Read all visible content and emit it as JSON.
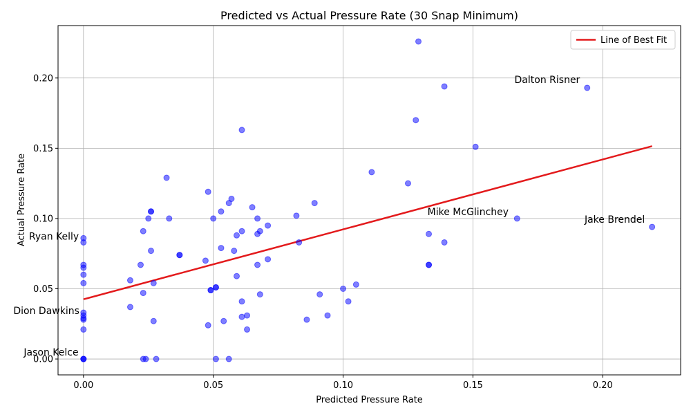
{
  "chart_data": {
    "type": "scatter",
    "title": "Predicted vs Actual Pressure Rate (30 Snap Minimum)",
    "xlabel": "Predicted Pressure Rate",
    "ylabel": "Actual Pressure Rate",
    "xlim": [
      -0.0098,
      0.23
    ],
    "ylim": [
      -0.0113,
      0.2373
    ],
    "xticks": [
      0.0,
      0.05,
      0.1,
      0.15,
      0.2
    ],
    "xtick_labels": [
      "0.00",
      "0.05",
      "0.10",
      "0.15",
      "0.20"
    ],
    "yticks": [
      0.0,
      0.05,
      0.1,
      0.15,
      0.2
    ],
    "ytick_labels": [
      "0.00",
      "0.05",
      "0.10",
      "0.15",
      "0.20"
    ],
    "grid": true,
    "legend": {
      "position": "top-right",
      "entries": [
        "Line of Best Fit"
      ]
    },
    "point_color": "#0000ff",
    "line_color": "#e31a1c",
    "series": [
      {
        "kind": "scatter",
        "points": [
          [
            0.129,
            0.226
          ],
          [
            0.139,
            0.194
          ],
          [
            0.194,
            0.193
          ],
          [
            0.128,
            0.17
          ],
          [
            0.061,
            0.163
          ],
          [
            0.151,
            0.151
          ],
          [
            0.111,
            0.133
          ],
          [
            0.032,
            0.129
          ],
          [
            0.125,
            0.125
          ],
          [
            0.048,
            0.119
          ],
          [
            0.057,
            0.114
          ],
          [
            0.056,
            0.111
          ],
          [
            0.089,
            0.111
          ],
          [
            0.065,
            0.108
          ],
          [
            0.026,
            0.105
          ],
          [
            0.026,
            0.105
          ],
          [
            0.053,
            0.105
          ],
          [
            0.082,
            0.102
          ],
          [
            0.025,
            0.1
          ],
          [
            0.033,
            0.1
          ],
          [
            0.05,
            0.1
          ],
          [
            0.067,
            0.1
          ],
          [
            0.167,
            0.1
          ],
          [
            0.071,
            0.095
          ],
          [
            0.219,
            0.094
          ],
          [
            0.023,
            0.091
          ],
          [
            0.061,
            0.091
          ],
          [
            0.068,
            0.091
          ],
          [
            0.059,
            0.088
          ],
          [
            0.067,
            0.089
          ],
          [
            0.133,
            0.089
          ],
          [
            0.0,
            0.086
          ],
          [
            0.0,
            0.083
          ],
          [
            0.083,
            0.083
          ],
          [
            0.139,
            0.083
          ],
          [
            0.053,
            0.079
          ],
          [
            0.026,
            0.077
          ],
          [
            0.058,
            0.077
          ],
          [
            0.037,
            0.074
          ],
          [
            0.037,
            0.074
          ],
          [
            0.071,
            0.071
          ],
          [
            0.047,
            0.07
          ],
          [
            0.0,
            0.067
          ],
          [
            0.0,
            0.065
          ],
          [
            0.022,
            0.067
          ],
          [
            0.067,
            0.067
          ],
          [
            0.133,
            0.067
          ],
          [
            0.133,
            0.067
          ],
          [
            0.0,
            0.06
          ],
          [
            0.059,
            0.059
          ],
          [
            0.018,
            0.056
          ],
          [
            0.0,
            0.054
          ],
          [
            0.027,
            0.054
          ],
          [
            0.105,
            0.053
          ],
          [
            0.051,
            0.051
          ],
          [
            0.051,
            0.051
          ],
          [
            0.1,
            0.05
          ],
          [
            0.049,
            0.049
          ],
          [
            0.049,
            0.049
          ],
          [
            0.023,
            0.047
          ],
          [
            0.068,
            0.046
          ],
          [
            0.091,
            0.046
          ],
          [
            0.061,
            0.041
          ],
          [
            0.102,
            0.041
          ],
          [
            0.018,
            0.037
          ],
          [
            0.0,
            0.033
          ],
          [
            0.0,
            0.031
          ],
          [
            0.063,
            0.031
          ],
          [
            0.094,
            0.031
          ],
          [
            0.061,
            0.03
          ],
          [
            0.0,
            0.029
          ],
          [
            0.0,
            0.028
          ],
          [
            0.086,
            0.028
          ],
          [
            0.027,
            0.027
          ],
          [
            0.054,
            0.027
          ],
          [
            0.048,
            0.024
          ],
          [
            0.0,
            0.021
          ],
          [
            0.063,
            0.021
          ],
          [
            0.0,
            0.0
          ],
          [
            0.0,
            0.0
          ],
          [
            0.0,
            0.0
          ],
          [
            0.023,
            0.0
          ],
          [
            0.024,
            0.0
          ],
          [
            0.028,
            0.0
          ],
          [
            0.051,
            0.0
          ],
          [
            0.056,
            0.0
          ]
        ]
      },
      {
        "kind": "line",
        "name": "Line of Best Fit",
        "x": [
          0.0,
          0.219
        ],
        "y": [
          0.0425,
          0.1515
        ]
      }
    ],
    "annotations": [
      {
        "text": "Dalton Risner",
        "x": 0.166,
        "y": 0.1965,
        "anchor": "start"
      },
      {
        "text": "Mike McGlinchey",
        "x": 0.1325,
        "y": 0.1025,
        "anchor": "start"
      },
      {
        "text": "Jake Brendel",
        "x": 0.193,
        "y": 0.097,
        "anchor": "start"
      },
      {
        "text": "Ryan Kelly",
        "x": -0.021,
        "y": 0.085,
        "anchor": "start"
      },
      {
        "text": "Dion Dawkins",
        "x": -0.027,
        "y": 0.032,
        "anchor": "start"
      },
      {
        "text": "Jason Kelce",
        "x": -0.023,
        "y": 0.0025,
        "anchor": "start"
      }
    ]
  }
}
